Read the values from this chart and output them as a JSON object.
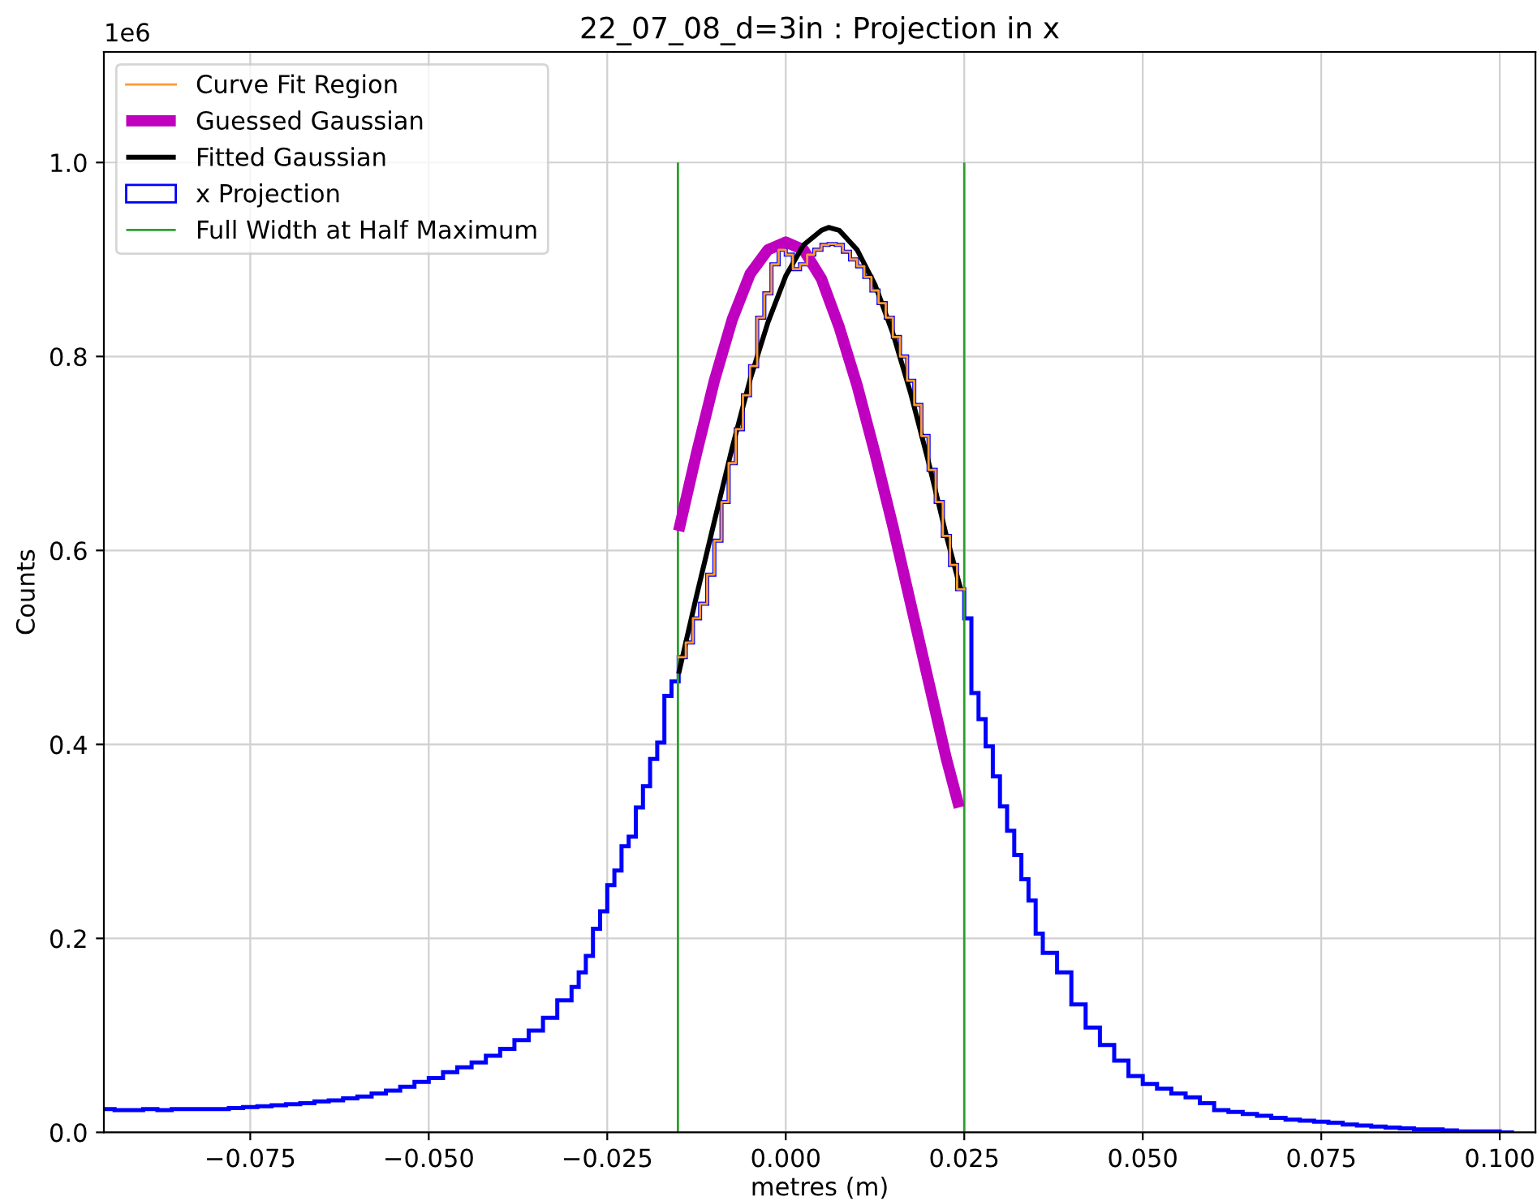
{
  "chart_data": {
    "type": "histogram",
    "title": "22_07_08_d=3in : Projection in x",
    "xlabel": "metres (m)",
    "ylabel": "Counts",
    "annotations": [
      "1e6"
    ],
    "xlim": [
      -0.0955,
      0.105
    ],
    "ylim": [
      0,
      1.114
    ],
    "xticks": [
      {
        "value": -0.075,
        "label": "−0.075"
      },
      {
        "value": -0.05,
        "label": "−0.050"
      },
      {
        "value": -0.025,
        "label": "−0.025"
      },
      {
        "value": 0,
        "label": "0.000"
      },
      0.025,
      {
        "value": 0.05,
        "label": "0.050"
      },
      0.075,
      {
        "value": 0.1,
        "label": "0.100"
      }
    ],
    "yticks": [
      {
        "value": 0,
        "label": "0.0"
      },
      0.2,
      0.4,
      0.6,
      0.8,
      {
        "value": 1,
        "label": "1.0"
      }
    ],
    "grid": true,
    "legend": "top left",
    "series": [
      {
        "type": "step",
        "name": "Curve Fit Region",
        "color": "#ff9933",
        "x": [
          -0.015,
          -0.014,
          -0.013,
          -0.012,
          -0.011,
          -0.01,
          -0.009,
          -0.008,
          -0.007,
          -0.006,
          -0.005,
          -0.004,
          -0.003,
          -0.002,
          -0.001,
          0.0,
          0.001,
          0.002,
          0.003,
          0.004,
          0.005,
          0.006,
          0.007,
          0.008,
          0.009,
          0.01,
          0.011,
          0.012,
          0.013,
          0.014,
          0.015,
          0.016,
          0.017,
          0.018,
          0.019,
          0.02,
          0.021,
          0.022,
          0.023,
          0.024,
          0.025
        ],
        "values": [
          0.49,
          0.505,
          0.53,
          0.545,
          0.575,
          0.61,
          0.65,
          0.69,
          0.725,
          0.76,
          0.79,
          0.84,
          0.865,
          0.895,
          0.91,
          0.905,
          0.89,
          0.895,
          0.905,
          0.91,
          0.915,
          0.916,
          0.915,
          0.908,
          0.9,
          0.893,
          0.882,
          0.868,
          0.855,
          0.84,
          0.82,
          0.8,
          0.775,
          0.75,
          0.718,
          0.683,
          0.65,
          0.615,
          0.585,
          0.56,
          0.56
        ]
      },
      {
        "type": "line",
        "name": "Guessed Gaussian",
        "color": "#bf00bf",
        "x": [
          -0.015,
          -0.0125,
          -0.01,
          -0.0075,
          -0.005,
          -0.0025,
          0,
          0.0025,
          0.005,
          0.0075,
          0.01,
          0.0125,
          0.015,
          0.0175,
          0.02,
          0.0225,
          0.0243
        ],
        "values": [
          0.62,
          0.7,
          0.775,
          0.838,
          0.885,
          0.91,
          0.918,
          0.91,
          0.88,
          0.83,
          0.77,
          0.7,
          0.625,
          0.545,
          0.465,
          0.385,
          0.335
        ]
      },
      {
        "type": "line",
        "name": "Fitted Gaussian",
        "color": "#000000",
        "x": [
          -0.015,
          -0.0125,
          -0.01,
          -0.0075,
          -0.005,
          -0.0025,
          0,
          0.0025,
          0.005,
          0.006,
          0.0075,
          0.01,
          0.0125,
          0.015,
          0.0175,
          0.02,
          0.0225,
          0.0245
        ],
        "values": [
          0.473,
          0.553,
          0.63,
          0.706,
          0.776,
          0.835,
          0.883,
          0.915,
          0.93,
          0.933,
          0.93,
          0.91,
          0.874,
          0.824,
          0.762,
          0.691,
          0.615,
          0.56
        ]
      },
      {
        "name": "x Projection",
        "color": "#0000ff",
        "bins": [
          -0.096,
          -0.094,
          -0.092,
          -0.09,
          -0.088,
          -0.086,
          -0.084,
          -0.082,
          -0.08,
          -0.078,
          -0.076,
          -0.074,
          -0.072,
          -0.07,
          -0.068,
          -0.066,
          -0.064,
          -0.062,
          -0.06,
          -0.058,
          -0.056,
          -0.054,
          -0.052,
          -0.05,
          -0.048,
          -0.046,
          -0.044,
          -0.042,
          -0.04,
          -0.038,
          -0.036,
          -0.034,
          -0.032,
          -0.03,
          -0.029,
          -0.028,
          -0.027,
          -0.026,
          -0.025,
          -0.024,
          -0.023,
          -0.022,
          -0.021,
          -0.02,
          -0.019,
          -0.018,
          -0.017,
          -0.016,
          -0.015,
          -0.014,
          -0.013,
          -0.012,
          -0.011,
          -0.01,
          -0.009,
          -0.008,
          -0.007,
          -0.006,
          -0.005,
          -0.004,
          -0.003,
          -0.002,
          -0.001,
          0.0,
          0.001,
          0.002,
          0.003,
          0.004,
          0.005,
          0.006,
          0.007,
          0.008,
          0.009,
          0.01,
          0.011,
          0.012,
          0.013,
          0.014,
          0.015,
          0.016,
          0.017,
          0.018,
          0.019,
          0.02,
          0.021,
          0.022,
          0.023,
          0.024,
          0.025,
          0.026,
          0.027,
          0.028,
          0.029,
          0.03,
          0.031,
          0.032,
          0.033,
          0.034,
          0.035,
          0.036,
          0.038,
          0.04,
          0.042,
          0.044,
          0.046,
          0.048,
          0.05,
          0.052,
          0.054,
          0.056,
          0.058,
          0.06,
          0.062,
          0.064,
          0.066,
          0.068,
          0.07,
          0.072,
          0.074,
          0.076,
          0.078,
          0.08,
          0.082,
          0.084,
          0.086,
          0.088,
          0.09,
          0.092,
          0.094,
          0.096,
          0.098,
          0.1,
          0.102
        ],
        "values": [
          0.024,
          0.023,
          0.023,
          0.024,
          0.023,
          0.024,
          0.024,
          0.024,
          0.024,
          0.025,
          0.026,
          0.027,
          0.028,
          0.029,
          0.03,
          0.032,
          0.033,
          0.035,
          0.037,
          0.04,
          0.043,
          0.047,
          0.052,
          0.056,
          0.062,
          0.067,
          0.072,
          0.079,
          0.086,
          0.095,
          0.105,
          0.118,
          0.136,
          0.15,
          0.165,
          0.182,
          0.21,
          0.228,
          0.255,
          0.27,
          0.295,
          0.305,
          0.335,
          0.357,
          0.385,
          0.402,
          0.45,
          0.465,
          0.49,
          0.505,
          0.53,
          0.545,
          0.575,
          0.61,
          0.65,
          0.69,
          0.725,
          0.76,
          0.79,
          0.84,
          0.865,
          0.895,
          0.91,
          0.905,
          0.89,
          0.895,
          0.905,
          0.91,
          0.915,
          0.916,
          0.915,
          0.908,
          0.9,
          0.893,
          0.882,
          0.868,
          0.855,
          0.84,
          0.82,
          0.8,
          0.775,
          0.75,
          0.718,
          0.683,
          0.65,
          0.615,
          0.585,
          0.56,
          0.53,
          0.453,
          0.426,
          0.398,
          0.367,
          0.336,
          0.311,
          0.286,
          0.261,
          0.239,
          0.205,
          0.185,
          0.165,
          0.132,
          0.108,
          0.09,
          0.074,
          0.058,
          0.05,
          0.045,
          0.04,
          0.036,
          0.03,
          0.023,
          0.021,
          0.019,
          0.017,
          0.015,
          0.013,
          0.012,
          0.011,
          0.01,
          0.008,
          0.007,
          0.006,
          0.005,
          0.004,
          0.003,
          0.003,
          0.002,
          0.001,
          0.001,
          0.001,
          0.0
        ]
      },
      {
        "type": "line",
        "name": "Full Width at Half Maximum",
        "color": "#2ca02c",
        "x": [
          -0.0151,
          -0.0151,
          0.0049,
          0.025,
          0.025
        ],
        "values": [
          0,
          1,
          null,
          0,
          1
        ]
      }
    ]
  }
}
